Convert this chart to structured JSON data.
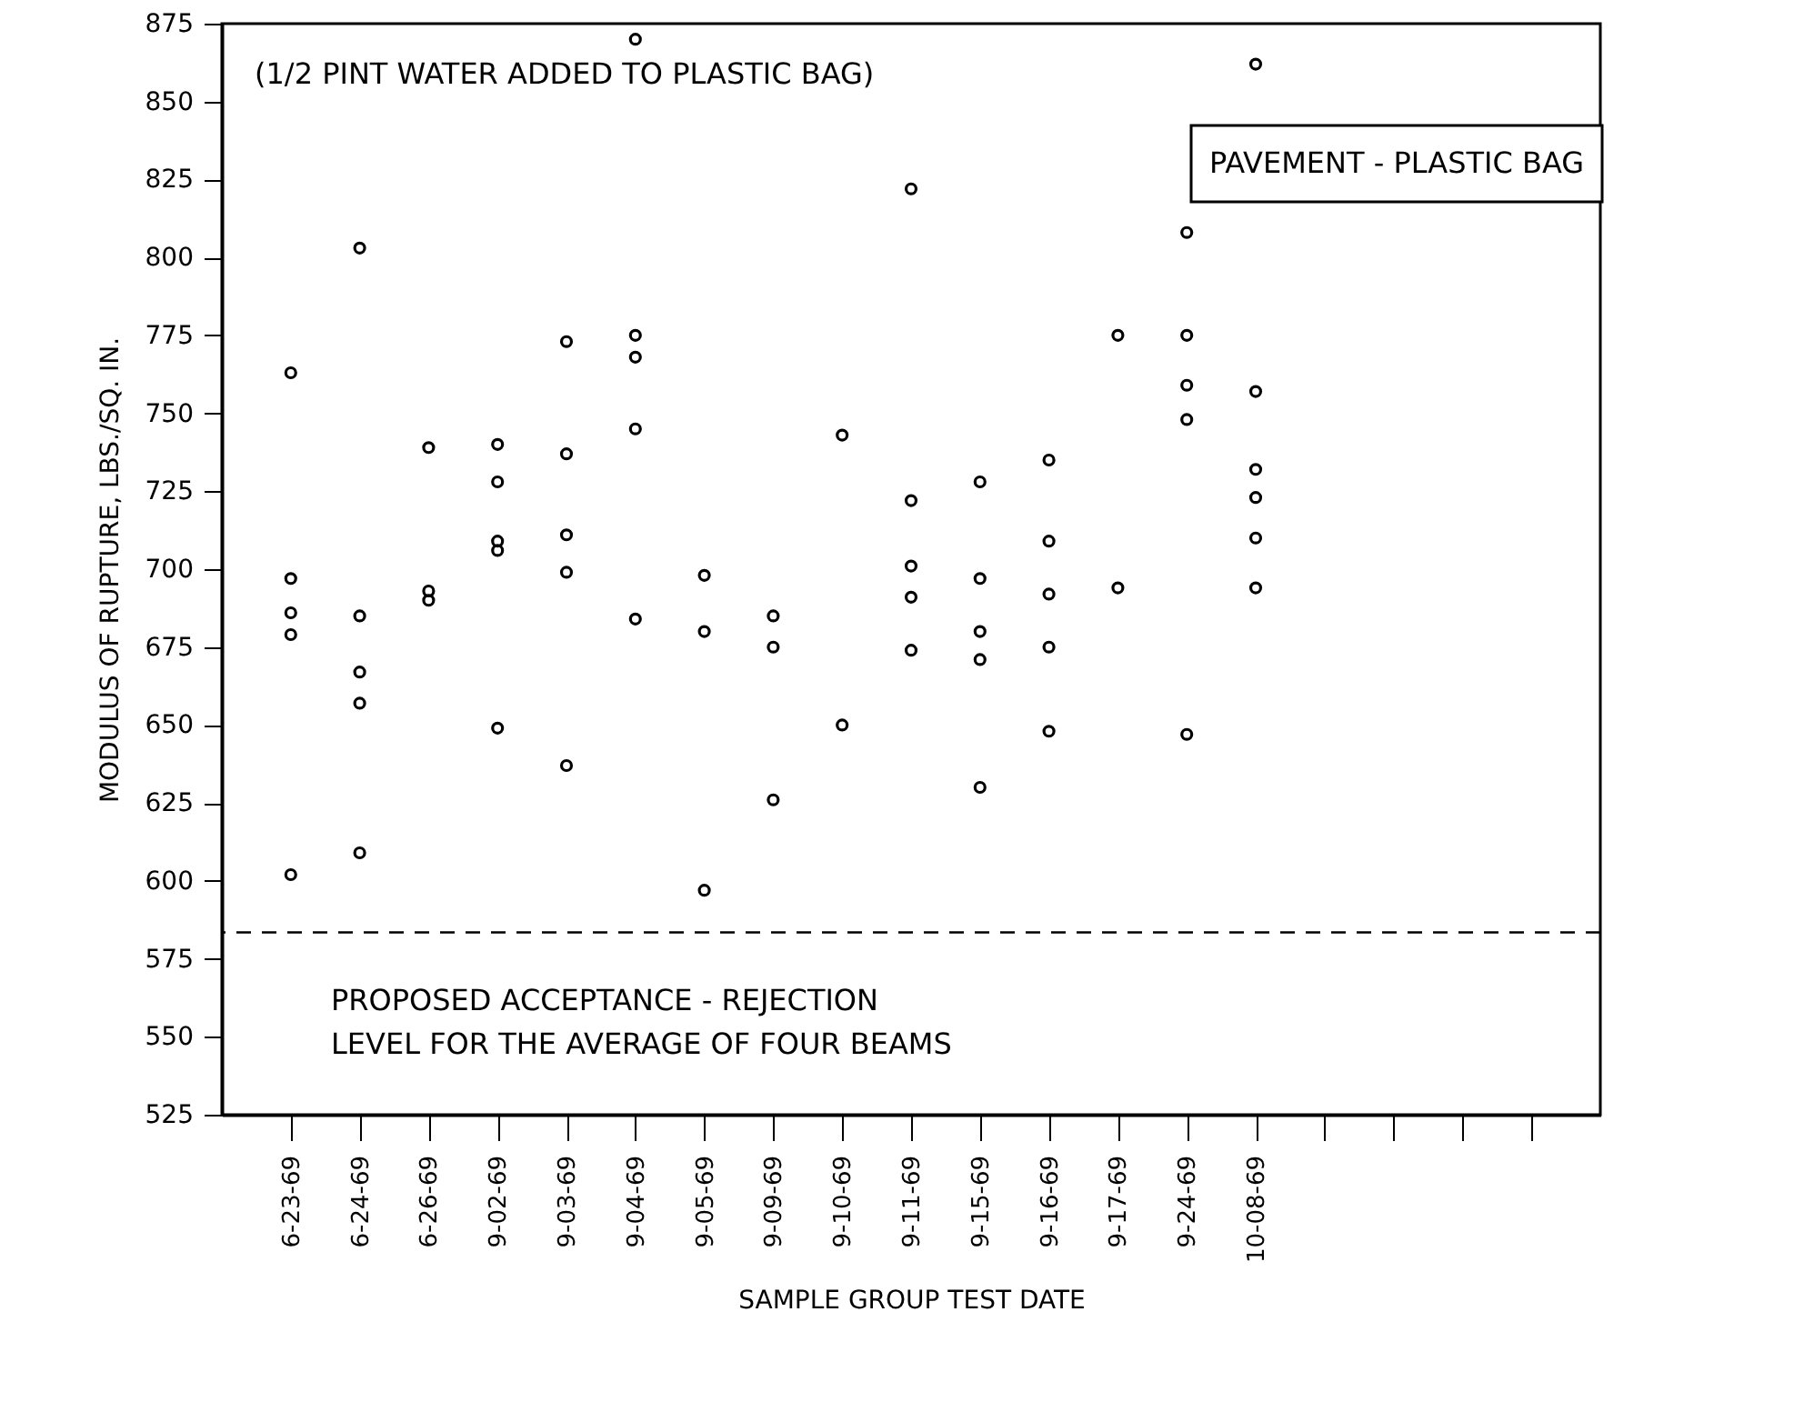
{
  "chart_data": {
    "type": "scatter",
    "title": "PAVEMENT - PLASTIC BAG",
    "xlabel": "SAMPLE GROUP TEST DATE",
    "ylabel": "MODULUS OF RUPTURE, LBS./SQ. IN.",
    "annotations": [
      "(1/2 PINT WATER ADDED TO PLASTIC BAG)"
    ],
    "categories": [
      "6-23-69",
      "6-24-69",
      "6-26-69",
      "9-02-69",
      "9-03-69",
      "9-04-69",
      "9-05-69",
      "9-09-69",
      "9-10-69",
      "9-11-69",
      "9-15-69",
      "9-16-69",
      "9-17-69",
      "9-24-69",
      "10-08-69",
      null,
      null,
      null,
      null
    ],
    "series": [
      {
        "color": "#000000",
        "values": [
          763,
          803,
          739,
          740,
          773,
          870,
          698,
          685,
          743,
          822,
          728,
          735,
          775,
          808,
          862,
          null,
          null,
          null,
          null
        ]
      },
      {
        "color": "#000000",
        "values": [
          697,
          685,
          693,
          728,
          737,
          775,
          680,
          675,
          650,
          722,
          697,
          709,
          694,
          775,
          757,
          null,
          null,
          null,
          null
        ]
      },
      {
        "color": "#000000",
        "values": [
          686,
          667,
          690,
          709,
          711,
          768,
          597,
          626,
          null,
          701,
          680,
          692,
          null,
          759,
          732,
          null,
          null,
          null,
          null
        ]
      },
      {
        "color": "#000000",
        "values": [
          679,
          657,
          null,
          706,
          699,
          745,
          null,
          null,
          null,
          691,
          671,
          675,
          null,
          748,
          723,
          null,
          null,
          null,
          null
        ]
      },
      {
        "color": "#000000",
        "values": [
          602,
          609,
          null,
          649,
          637,
          684,
          null,
          null,
          null,
          674,
          630,
          648,
          null,
          647,
          710,
          null,
          null,
          null,
          null
        ]
      },
      {
        "color": "#000000",
        "values": [
          null,
          null,
          null,
          null,
          null,
          null,
          null,
          null,
          null,
          null,
          null,
          null,
          null,
          null,
          694,
          null,
          null,
          null,
          null
        ]
      }
    ],
    "ylim": [
      525,
      875
    ],
    "yticks": [
      525,
      550,
      575,
      600,
      625,
      650,
      675,
      700,
      725,
      750,
      775,
      800,
      825,
      850,
      875
    ],
    "ref_lines": [
      {
        "axis": "y",
        "value": 583.5,
        "label": "PROPOSED ACCEPTANCE - REJECTION LEVEL FOR THE AVERAGE OF FOUR BEAMS",
        "line_style": "dashed",
        "color": "#000000"
      }
    ],
    "grid": false,
    "marker": "circle"
  }
}
